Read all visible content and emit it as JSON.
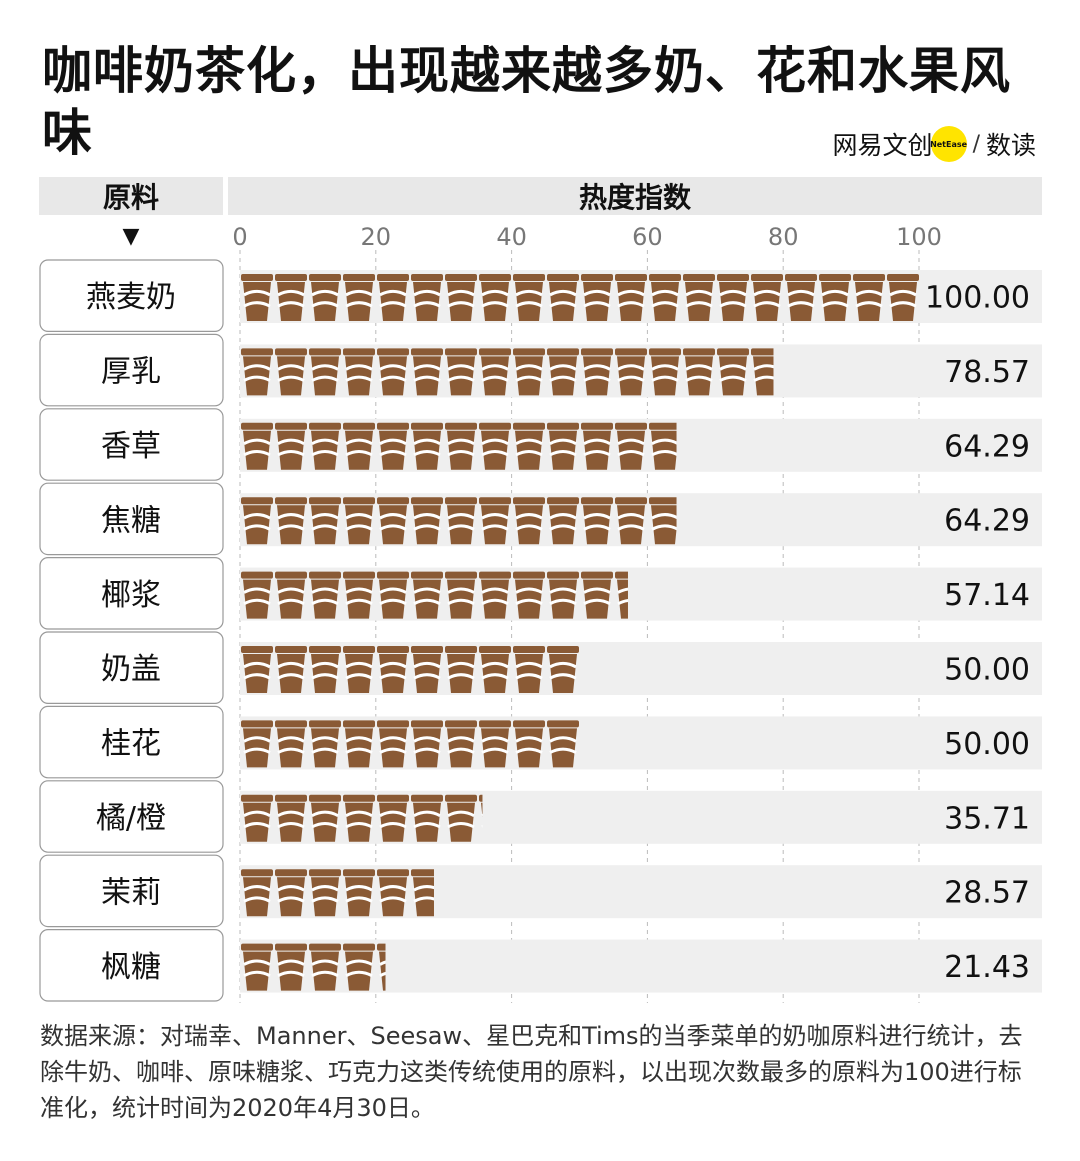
{
  "title": "咖啡奶茶化，出现越来越多奶、花和水果风味",
  "brand": {
    "name": "网易文创",
    "badge": "NetEase",
    "sub": "数读"
  },
  "header": {
    "left": "原料",
    "right": "热度指数",
    "arrow": "▼"
  },
  "footnote": "数据来源：对瑞幸、Manner、Seesaw、星巴克和Tims的当季菜单的奶咖原料进行统计，去除牛奶、咖啡、原味糖浆、巧克力这类传统使用的原料，以出现次数最多的原料为100进行标准化，统计时间为2020年4月30日。",
  "colors": {
    "cup": "#8a5a35",
    "row_bg": "#efefef",
    "header_bg": "#e8e8e8",
    "badge": "#ffe400"
  },
  "chart_data": {
    "type": "bar",
    "orientation": "horizontal",
    "categories": [
      "燕麦奶",
      "厚乳",
      "香草",
      "焦糖",
      "椰浆",
      "奶盖",
      "桂花",
      "橘/橙",
      "茉莉",
      "枫糖"
    ],
    "values": [
      100.0,
      78.57,
      64.29,
      64.29,
      57.14,
      50.0,
      50.0,
      35.71,
      28.57,
      21.43
    ],
    "value_labels": [
      "100.00",
      "78.57",
      "64.29",
      "64.29",
      "57.14",
      "50.00",
      "50.00",
      "35.71",
      "28.57",
      "21.43"
    ],
    "xlim": [
      0,
      100
    ],
    "xticks": [
      0,
      20,
      40,
      60,
      80,
      100
    ],
    "xlabel": "热度指数",
    "ylabel": "原料",
    "grid": "vertical dashed",
    "mark": "coffee cup icons"
  }
}
